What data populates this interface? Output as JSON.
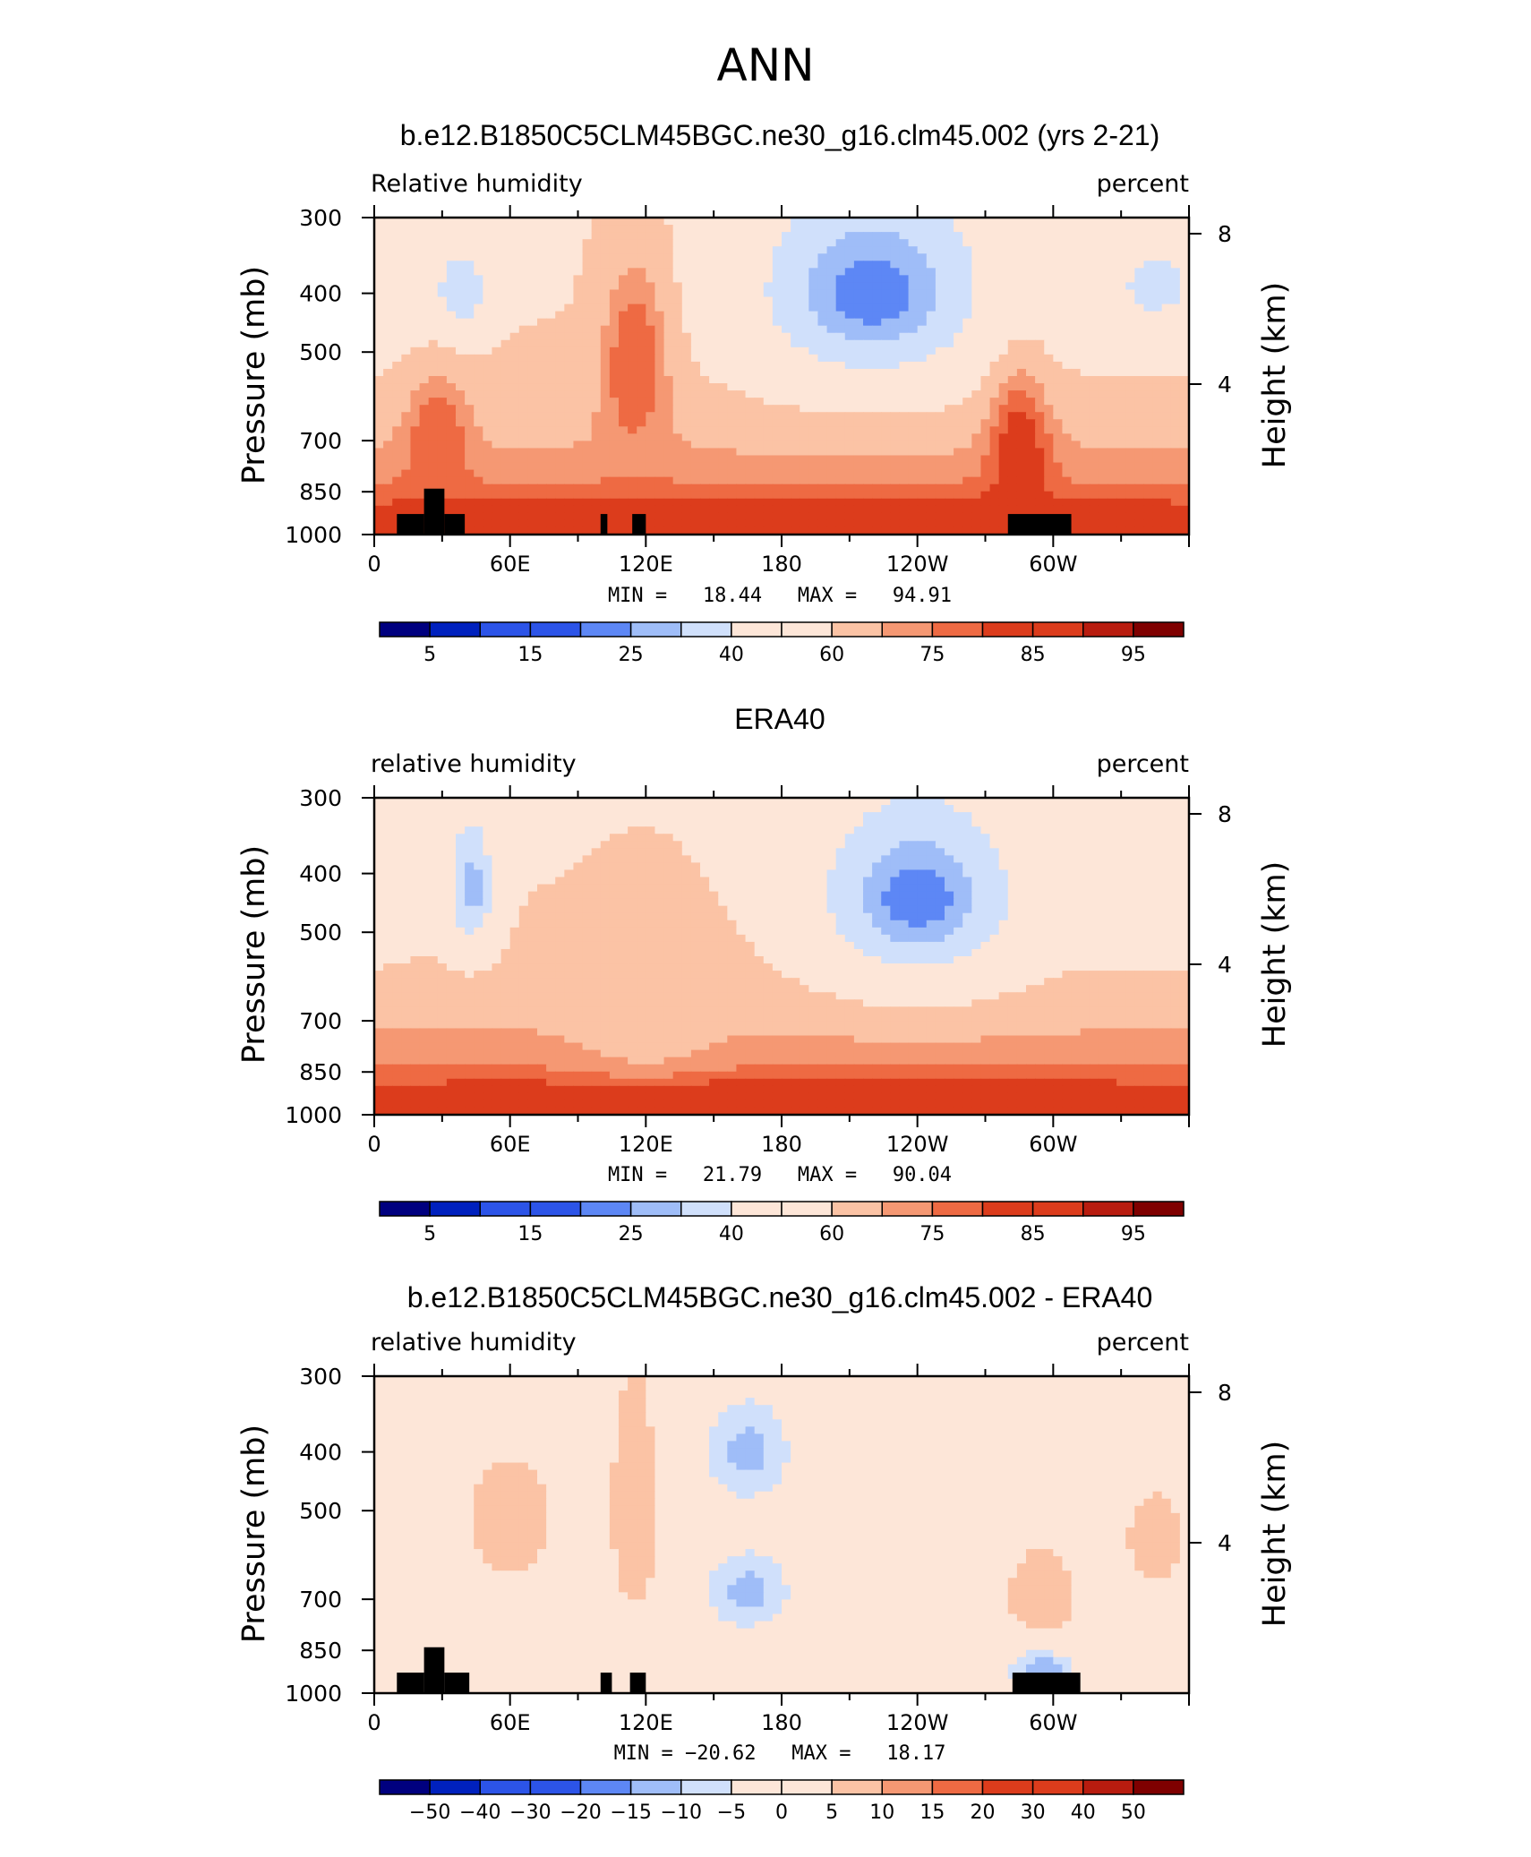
{
  "figure": {
    "title": "ANN"
  },
  "colors": {
    "contours_full": [
      "#00007f",
      "#0021be",
      "#2c54e8",
      "#5d87f5",
      "#9fbdf8",
      "#d0e0fb",
      "#fde6d8",
      "#fbc3a5",
      "#f59873",
      "#ee6a43",
      "#dc3c1c",
      "#b81c0f",
      "#7f0000"
    ],
    "contours_diff": [
      "#00007f",
      "#0021be",
      "#2c54e8",
      "#5d87f5",
      "#9fbdf8",
      "#d0e0fb",
      "#fde6d8",
      "#fbc3a5",
      "#f59873",
      "#ee6a43",
      "#dc3c1c",
      "#b81c0f",
      "#7f0000"
    ],
    "terrain": "#000000"
  },
  "chart_data": [
    {
      "type": "heatmap",
      "title": "b.e12.B1850C5CLM45BGC.ne30_g16.clm45.002 (yrs 2-21)",
      "left_label": "Relative humidity",
      "right_label": "percent",
      "ylabel": "Pressure (mb)",
      "y2label": "Height (km)",
      "x_ticklabels": [
        "0",
        "60E",
        "120E",
        "180",
        "120W",
        "60W"
      ],
      "x_tick_lon": [
        0,
        60,
        120,
        180,
        240,
        300
      ],
      "xlim": [
        0,
        360
      ],
      "y_ticklabels": [
        "300",
        "400",
        "500",
        "700",
        "850",
        "1000"
      ],
      "y_tick_p": [
        300,
        400,
        500,
        700,
        850,
        1000
      ],
      "ylim": [
        1000,
        300
      ],
      "y_scale": "log-pressure",
      "y2_ticklabels": [
        "4",
        "8"
      ],
      "y2_tick_km": [
        4,
        8
      ],
      "stats_text": "MIN =   18.44   MAX =   94.91",
      "min": 18.44,
      "max": 94.91,
      "contour_levels": [
        5,
        10,
        15,
        20,
        25,
        30,
        40,
        50,
        60,
        70,
        75,
        80,
        85,
        90,
        95
      ],
      "colorbar_labels": [
        "5",
        "15",
        "25",
        "40",
        "60",
        "75",
        "85",
        "95"
      ],
      "terrain_blocks": [
        [
          10,
          22,
          1000,
          925
        ],
        [
          22,
          31,
          1000,
          840
        ],
        [
          31,
          40,
          1000,
          925
        ],
        [
          100,
          103,
          1000,
          925
        ],
        [
          114,
          120,
          1000,
          925
        ],
        [
          280,
          308,
          1000,
          925
        ]
      ],
      "features": [
        {
          "lon": 38,
          "p": 400,
          "value": 28,
          "sx": 9,
          "sp": 50
        },
        {
          "lon": 220,
          "p": 400,
          "value": 22,
          "sx": 40,
          "sp": 120
        },
        {
          "lon": 345,
          "p": 390,
          "value": 38,
          "sx": 25,
          "sp": 80
        },
        {
          "lon": 115,
          "p": 520,
          "value": 80,
          "sx": 12,
          "sp": 150
        },
        {
          "lon": 28,
          "p": 700,
          "value": 80,
          "sx": 10,
          "sp": 120
        },
        {
          "lon": 285,
          "p": 740,
          "value": 85,
          "sx": 10,
          "sp": 160
        },
        {
          "lon": 180,
          "p": 960,
          "value": 90,
          "sx": 150,
          "sp": 60
        }
      ]
    },
    {
      "type": "heatmap",
      "title": "ERA40",
      "left_label": "relative humidity",
      "right_label": "percent",
      "ylabel": "Pressure (mb)",
      "y2label": "Height (km)",
      "x_ticklabels": [
        "0",
        "60E",
        "120E",
        "180",
        "120W",
        "60W"
      ],
      "x_tick_lon": [
        0,
        60,
        120,
        180,
        240,
        300
      ],
      "xlim": [
        0,
        360
      ],
      "y_ticklabels": [
        "300",
        "400",
        "500",
        "700",
        "850",
        "1000"
      ],
      "y_tick_p": [
        300,
        400,
        500,
        700,
        850,
        1000
      ],
      "ylim": [
        1000,
        300
      ],
      "y_scale": "log-pressure",
      "y2_ticklabels": [
        "4",
        "8"
      ],
      "y2_tick_km": [
        4,
        8
      ],
      "stats_text": "MIN =   21.79   MAX =   90.04",
      "min": 21.79,
      "max": 90.04,
      "contour_levels": [
        5,
        10,
        15,
        20,
        25,
        30,
        40,
        50,
        60,
        70,
        75,
        80,
        85,
        90,
        95
      ],
      "colorbar_labels": [
        "5",
        "15",
        "25",
        "40",
        "60",
        "75",
        "85",
        "95"
      ],
      "terrain_blocks": [],
      "features": [
        {
          "lon": 43,
          "p": 420,
          "value": 25,
          "sx": 8,
          "sp": 80
        },
        {
          "lon": 240,
          "p": 440,
          "value": 22,
          "sx": 35,
          "sp": 120
        },
        {
          "lon": 345,
          "p": 430,
          "value": 40,
          "sx": 25,
          "sp": 80
        },
        {
          "lon": 120,
          "p": 700,
          "value": 68,
          "sx": 25,
          "sp": 200
        },
        {
          "lon": 180,
          "p": 960,
          "value": 88,
          "sx": 150,
          "sp": 60
        }
      ]
    },
    {
      "type": "heatmap",
      "title": "b.e12.B1850C5CLM45BGC.ne30_g16.clm45.002 - ERA40",
      "left_label": "relative humidity",
      "right_label": "percent",
      "ylabel": "Pressure (mb)",
      "y2label": "Height (km)",
      "x_ticklabels": [
        "0",
        "60E",
        "120E",
        "180",
        "120W",
        "60W"
      ],
      "x_tick_lon": [
        0,
        60,
        120,
        180,
        240,
        300
      ],
      "xlim": [
        0,
        360
      ],
      "y_ticklabels": [
        "300",
        "400",
        "500",
        "700",
        "850",
        "1000"
      ],
      "y_tick_p": [
        300,
        400,
        500,
        700,
        850,
        1000
      ],
      "ylim": [
        1000,
        300
      ],
      "y_scale": "log-pressure",
      "y2_ticklabels": [
        "4",
        "8"
      ],
      "y2_tick_km": [
        4,
        8
      ],
      "stats_text": "MIN = −20.62   MAX =   18.17",
      "min": -20.62,
      "max": 18.17,
      "contour_levels": [
        -50,
        -40,
        -30,
        -20,
        -15,
        -10,
        -5,
        0,
        5,
        10,
        15,
        20,
        30,
        40,
        50
      ],
      "colorbar_labels": [
        "−50",
        "−40",
        "−30",
        "−20",
        "−15",
        "−10",
        "−5",
        "0",
        "5",
        "10",
        "15",
        "20",
        "30",
        "40",
        "50"
      ],
      "terrain_blocks": [
        [
          10,
          22,
          1000,
          925
        ],
        [
          22,
          31,
          1000,
          840
        ],
        [
          31,
          42,
          1000,
          925
        ],
        [
          100,
          105,
          1000,
          925
        ],
        [
          113,
          120,
          1000,
          925
        ],
        [
          282,
          312,
          1000,
          925
        ]
      ],
      "features": [
        {
          "lon": 165,
          "p": 400,
          "value": -12,
          "sx": 15,
          "sp": 60
        },
        {
          "lon": 165,
          "p": 680,
          "value": -12,
          "sx": 15,
          "sp": 80
        },
        {
          "lon": 295,
          "p": 920,
          "value": -15,
          "sx": 10,
          "sp": 60
        },
        {
          "lon": 60,
          "p": 520,
          "value": 8,
          "sx": 15,
          "sp": 90
        },
        {
          "lon": 115,
          "p": 500,
          "value": 10,
          "sx": 7,
          "sp": 150
        },
        {
          "lon": 295,
          "p": 690,
          "value": 10,
          "sx": 10,
          "sp": 80
        },
        {
          "lon": 345,
          "p": 560,
          "value": 6,
          "sx": 15,
          "sp": 120
        }
      ]
    }
  ]
}
